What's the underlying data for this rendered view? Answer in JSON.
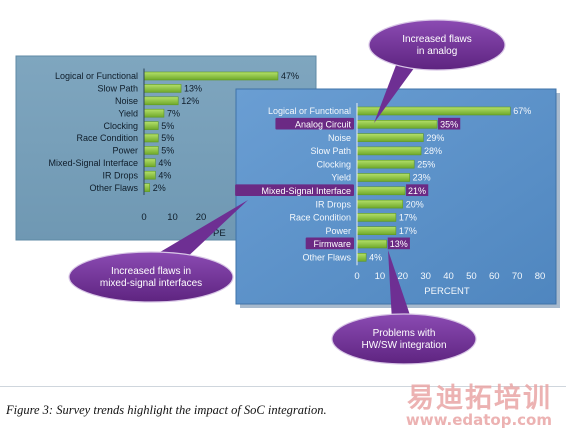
{
  "caption": "Figure 3: Survey trends highlight the impact of SoC integration.",
  "watermark": {
    "title": "易迪拓培训",
    "url": "www.edatop.com"
  },
  "colors": {
    "back_panel": "#78a0ba",
    "front_panel": "#5a8fc5",
    "bar": "#8cc43c",
    "bar_dark": "#5f9a22",
    "highlight": "#6b2a84",
    "callout": "#7a3aa0"
  },
  "callouts": [
    {
      "id": "analog",
      "text": "Increased flaws in analog"
    },
    {
      "id": "mixed",
      "text": "Increased flaws in mixed-signal interfaces"
    },
    {
      "id": "hwsw",
      "text": "Problems with HW/SW integration"
    }
  ],
  "chart_data": [
    {
      "type": "bar",
      "orientation": "horizontal",
      "categories": [
        "Logical or Functional",
        "Slow Path",
        "Noise",
        "Yield",
        "Clocking",
        "Race Condition",
        "Power",
        "Mixed-Signal Interface",
        "IR Drops",
        "Other Flaws"
      ],
      "values": [
        47,
        13,
        12,
        7,
        5,
        5,
        5,
        4,
        4,
        2
      ],
      "value_labels": [
        "47%",
        "13%",
        "12%",
        "7%",
        "5%",
        "5%",
        "5%",
        "4%",
        "4%",
        "2%"
      ],
      "xticks": [
        "0",
        "10",
        "20"
      ],
      "xlabel": "PE",
      "xlim": [
        0,
        80
      ],
      "grid": false
    },
    {
      "type": "bar",
      "orientation": "horizontal",
      "categories": [
        "Logical or Functional",
        "Analog Circuit",
        "Noise",
        "Slow Path",
        "Clocking",
        "Yield",
        "Mixed-Signal Interface",
        "IR Drops",
        "Race Condition",
        "Power",
        "Firmware",
        "Other Flaws"
      ],
      "values": [
        67,
        35,
        29,
        28,
        25,
        23,
        21,
        20,
        17,
        17,
        13,
        4
      ],
      "value_labels": [
        "67%",
        "35%",
        "29%",
        "28%",
        "25%",
        "23%",
        "21%",
        "20%",
        "17%",
        "17%",
        "13%",
        "4%"
      ],
      "highlighted": [
        "Analog Circuit",
        "Mixed-Signal Interface",
        "Firmware"
      ],
      "xticks": [
        "0",
        "10",
        "20",
        "30",
        "40",
        "50",
        "60",
        "70",
        "80"
      ],
      "xlabel": "PERCENT",
      "xlim": [
        0,
        80
      ],
      "grid": false
    }
  ]
}
